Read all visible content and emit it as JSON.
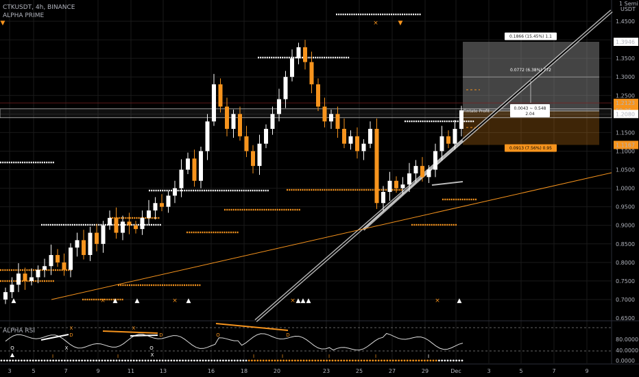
{
  "header": {
    "symbol_line": "CTKUSDT, 4h, BINANCE",
    "indicator_name": "ALPHA PRIME",
    "rsi_name": "ALPHA RSI"
  },
  "price_axis": {
    "currency_top": "1 Semi",
    "currency": "USDT",
    "ticks": [
      "1.4500",
      "1.4000",
      "1.3946",
      "1.3500",
      "1.3000",
      "1.2500",
      "1.2123",
      "1.2080",
      "1.1500",
      "1.1167",
      "1.1000",
      "1.0500",
      "1.0000",
      "0.9500",
      "0.9000",
      "0.8500",
      "0.8000",
      "0.7500",
      "0.7000",
      "0.6500"
    ],
    "badges": [
      {
        "text": "1.3946",
        "type": "white"
      },
      {
        "text": "1.2123",
        "type": "orange"
      },
      {
        "text": "59:25",
        "type": "orange"
      },
      {
        "text": "1.2080",
        "type": "white"
      },
      {
        "text": "1.1167",
        "type": "orange"
      }
    ]
  },
  "rsi_axis": {
    "ticks": [
      "80.0000",
      "40.0000",
      "0.0000"
    ]
  },
  "date_axis": {
    "labels": [
      "3",
      "5",
      "7",
      "9",
      "11",
      "13",
      "16",
      "18",
      "20",
      "23",
      "25",
      "27",
      "29",
      "Dec",
      "3",
      "5",
      "7",
      "9"
    ]
  },
  "position_tool": {
    "target_label": "0.1866 (15.45%) 1.1",
    "mid_label": "0.0772 (6.38%) 772",
    "center_label_1": "0.0043 ~ 0.548",
    "center_label_2": "2.04",
    "stop_label": "0.0913 (7.56%) 0.95",
    "small_tag": "Fintate Profit"
  },
  "signals": {
    "triangle_up": "▲",
    "triangle_down": "▼",
    "cross": "×",
    "x": "X",
    "o": "O",
    "d": "D",
    "i": "I"
  },
  "colors": {
    "bull": "#ffffff",
    "bear": "#f7941d",
    "accent": "#f7941d",
    "trend_white": "#cccccc",
    "grid": "#1a1a1a"
  },
  "chart_data": {
    "type": "candlestick",
    "symbol": "CTKUSDT",
    "timeframe": "4h",
    "exchange": "BINANCE",
    "ylim": [
      0.65,
      1.46
    ],
    "last_price": 1.2123,
    "levels": {
      "target": 1.3946,
      "entry": 1.208,
      "stop": 1.1167
    },
    "rsi": {
      "ylim": [
        0,
        100
      ],
      "levels": [
        80,
        40,
        0
      ]
    },
    "close_path": [
      0.72,
      0.74,
      0.77,
      0.75,
      0.76,
      0.78,
      0.79,
      0.82,
      0.8,
      0.78,
      0.84,
      0.86,
      0.82,
      0.88,
      0.85,
      0.9,
      0.92,
      0.88,
      0.91,
      0.9,
      0.89,
      0.92,
      0.94,
      0.96,
      0.95,
      0.98,
      1.0,
      1.05,
      1.08,
      1.02,
      1.1,
      1.18,
      1.28,
      1.22,
      1.16,
      1.2,
      1.14,
      1.1,
      1.06,
      1.12,
      1.16,
      1.2,
      1.24,
      1.3,
      1.35,
      1.38,
      1.34,
      1.28,
      1.22,
      1.18,
      1.2,
      1.16,
      1.12,
      1.14,
      1.1,
      1.12,
      1.16,
      0.96,
      0.99,
      1.02,
      1.0,
      1.01,
      1.04,
      1.06,
      1.03,
      1.05,
      1.1,
      1.14,
      1.12,
      1.16,
      1.21
    ]
  }
}
